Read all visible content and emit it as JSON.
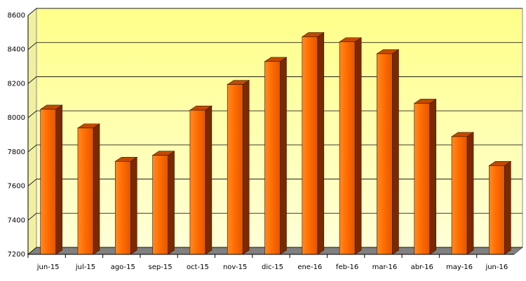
{
  "chart_data": {
    "type": "bar",
    "categories": [
      "jun-15",
      "jul-15",
      "ago-15",
      "sep-15",
      "oct-15",
      "nov-15",
      "dic-15",
      "ene-16",
      "feb-16",
      "mar-16",
      "abr-16",
      "may-16",
      "jun-16"
    ],
    "values": [
      8050,
      7940,
      7745,
      7780,
      8045,
      8195,
      8330,
      8475,
      8445,
      8375,
      8085,
      7890,
      7720
    ],
    "color": "#ff6a00",
    "ylim": [
      7200,
      8600
    ],
    "yticks": [
      7200,
      7400,
      7600,
      7800,
      8000,
      8200,
      8400,
      8600
    ],
    "grid": true
  }
}
